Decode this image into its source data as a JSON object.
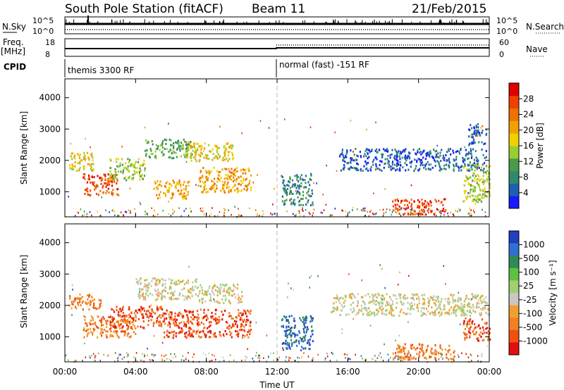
{
  "header": {
    "station": "South Pole Station (fitACF)",
    "beam": "Beam 11",
    "date": "21/Feb/2015"
  },
  "top_panels": {
    "nsky_label": "N.Sky",
    "nsky_ticks": [
      "10^5",
      "10^0"
    ],
    "nsearch_label": "N.Search",
    "nsearch_ticks": [
      "10^5",
      "10^0"
    ],
    "freq_label": "Freq.",
    "freq_unit": "[MHz]",
    "freq_ticks": [
      "18",
      "8"
    ],
    "nave_label": "Nave",
    "nave_ticks": [
      "60",
      "0"
    ],
    "cpid_label": "CPID",
    "cpid_segments": [
      "themis 3300 RF",
      "normal (fast) -151 RF"
    ]
  },
  "chart_data": [
    {
      "type": "heatmap",
      "name": "power",
      "ylabel": "Slant Range [km]",
      "xlabel": "Time UT",
      "y_ticks": [
        "1000",
        "2000",
        "3000",
        "4000"
      ],
      "x_ticks": [
        "00:00",
        "04:00",
        "08:00",
        "12:00",
        "16:00",
        "20:00",
        "00:00"
      ],
      "colorbar": {
        "label": "Power [dB]",
        "ticks": [
          "4",
          "8",
          "12",
          "16",
          "20",
          "24",
          "28"
        ],
        "colors": [
          "#1a1aff",
          "#1f5fb0",
          "#2f8a6a",
          "#4a9a4a",
          "#9acd32",
          "#f0d000",
          "#f0a000",
          "#f07000",
          "#f04000",
          "#e00000"
        ]
      },
      "regions": [
        {
          "x": [
            0.2,
            1.6
          ],
          "y": [
            1700,
            2300
          ],
          "level": 5
        },
        {
          "x": [
            1.0,
            3.0
          ],
          "y": [
            900,
            1600
          ],
          "level": 8
        },
        {
          "x": [
            2.5,
            4.5
          ],
          "y": [
            1400,
            2100
          ],
          "level": 4
        },
        {
          "x": [
            4.5,
            7.2
          ],
          "y": [
            2100,
            2700
          ],
          "level": 3
        },
        {
          "x": [
            6.8,
            9.5
          ],
          "y": [
            2000,
            2600
          ],
          "level": 5
        },
        {
          "x": [
            5.0,
            7.0
          ],
          "y": [
            800,
            1400
          ],
          "level": 6
        },
        {
          "x": [
            7.5,
            10.5
          ],
          "y": [
            1000,
            1800
          ],
          "level": 6
        },
        {
          "x": [
            12.2,
            14.0
          ],
          "y": [
            600,
            1600
          ],
          "level": 2
        },
        {
          "x": [
            15.5,
            23.8
          ],
          "y": [
            1700,
            2400
          ],
          "level": 1
        },
        {
          "x": [
            18.5,
            21.5
          ],
          "y": [
            300,
            800
          ],
          "level": 8
        },
        {
          "x": [
            22.5,
            24.0
          ],
          "y": [
            700,
            1900
          ],
          "level": 4
        },
        {
          "x": [
            22.8,
            23.8
          ],
          "y": [
            2500,
            3200
          ],
          "level": 1
        }
      ]
    },
    {
      "type": "heatmap",
      "name": "velocity",
      "ylabel": "Slant Range [km]",
      "xlabel": "Time UT",
      "y_ticks": [
        "1000",
        "2000",
        "3000",
        "4000"
      ],
      "x_ticks": [
        "00:00",
        "04:00",
        "08:00",
        "12:00",
        "16:00",
        "20:00",
        "00:00"
      ],
      "colorbar": {
        "label": "Velocity [m s⁻¹]",
        "ticks": [
          "1000",
          "500",
          "100",
          "25",
          "-25",
          "-100",
          "-500",
          "-1000"
        ],
        "colors": [
          "#2040c0",
          "#3070d0",
          "#2e8b57",
          "#60c040",
          "#a0d070",
          "#c8c8c0",
          "#f0a030",
          "#f08020",
          "#f05010",
          "#e01010"
        ]
      },
      "regions": [
        {
          "x": [
            0.2,
            2.0
          ],
          "y": [
            1900,
            2400
          ],
          "level": 7
        },
        {
          "x": [
            1.0,
            4.0
          ],
          "y": [
            1000,
            1700
          ],
          "level": 7
        },
        {
          "x": [
            4.0,
            7.5
          ],
          "y": [
            2200,
            2900
          ],
          "level": 5
        },
        {
          "x": [
            7.5,
            10.0
          ],
          "y": [
            2100,
            2700
          ],
          "level": 5
        },
        {
          "x": [
            2.5,
            5.5
          ],
          "y": [
            1300,
            2000
          ],
          "level": 8
        },
        {
          "x": [
            5.5,
            10.5
          ],
          "y": [
            1000,
            1900
          ],
          "level": 8
        },
        {
          "x": [
            12.2,
            14.0
          ],
          "y": [
            600,
            1700
          ],
          "level": 1
        },
        {
          "x": [
            15.0,
            24.0
          ],
          "y": [
            1700,
            2400
          ],
          "level": 5
        },
        {
          "x": [
            18.5,
            22.0
          ],
          "y": [
            300,
            800
          ],
          "level": 7
        },
        {
          "x": [
            22.5,
            24.0
          ],
          "y": [
            900,
            1600
          ],
          "level": 8
        }
      ]
    }
  ]
}
